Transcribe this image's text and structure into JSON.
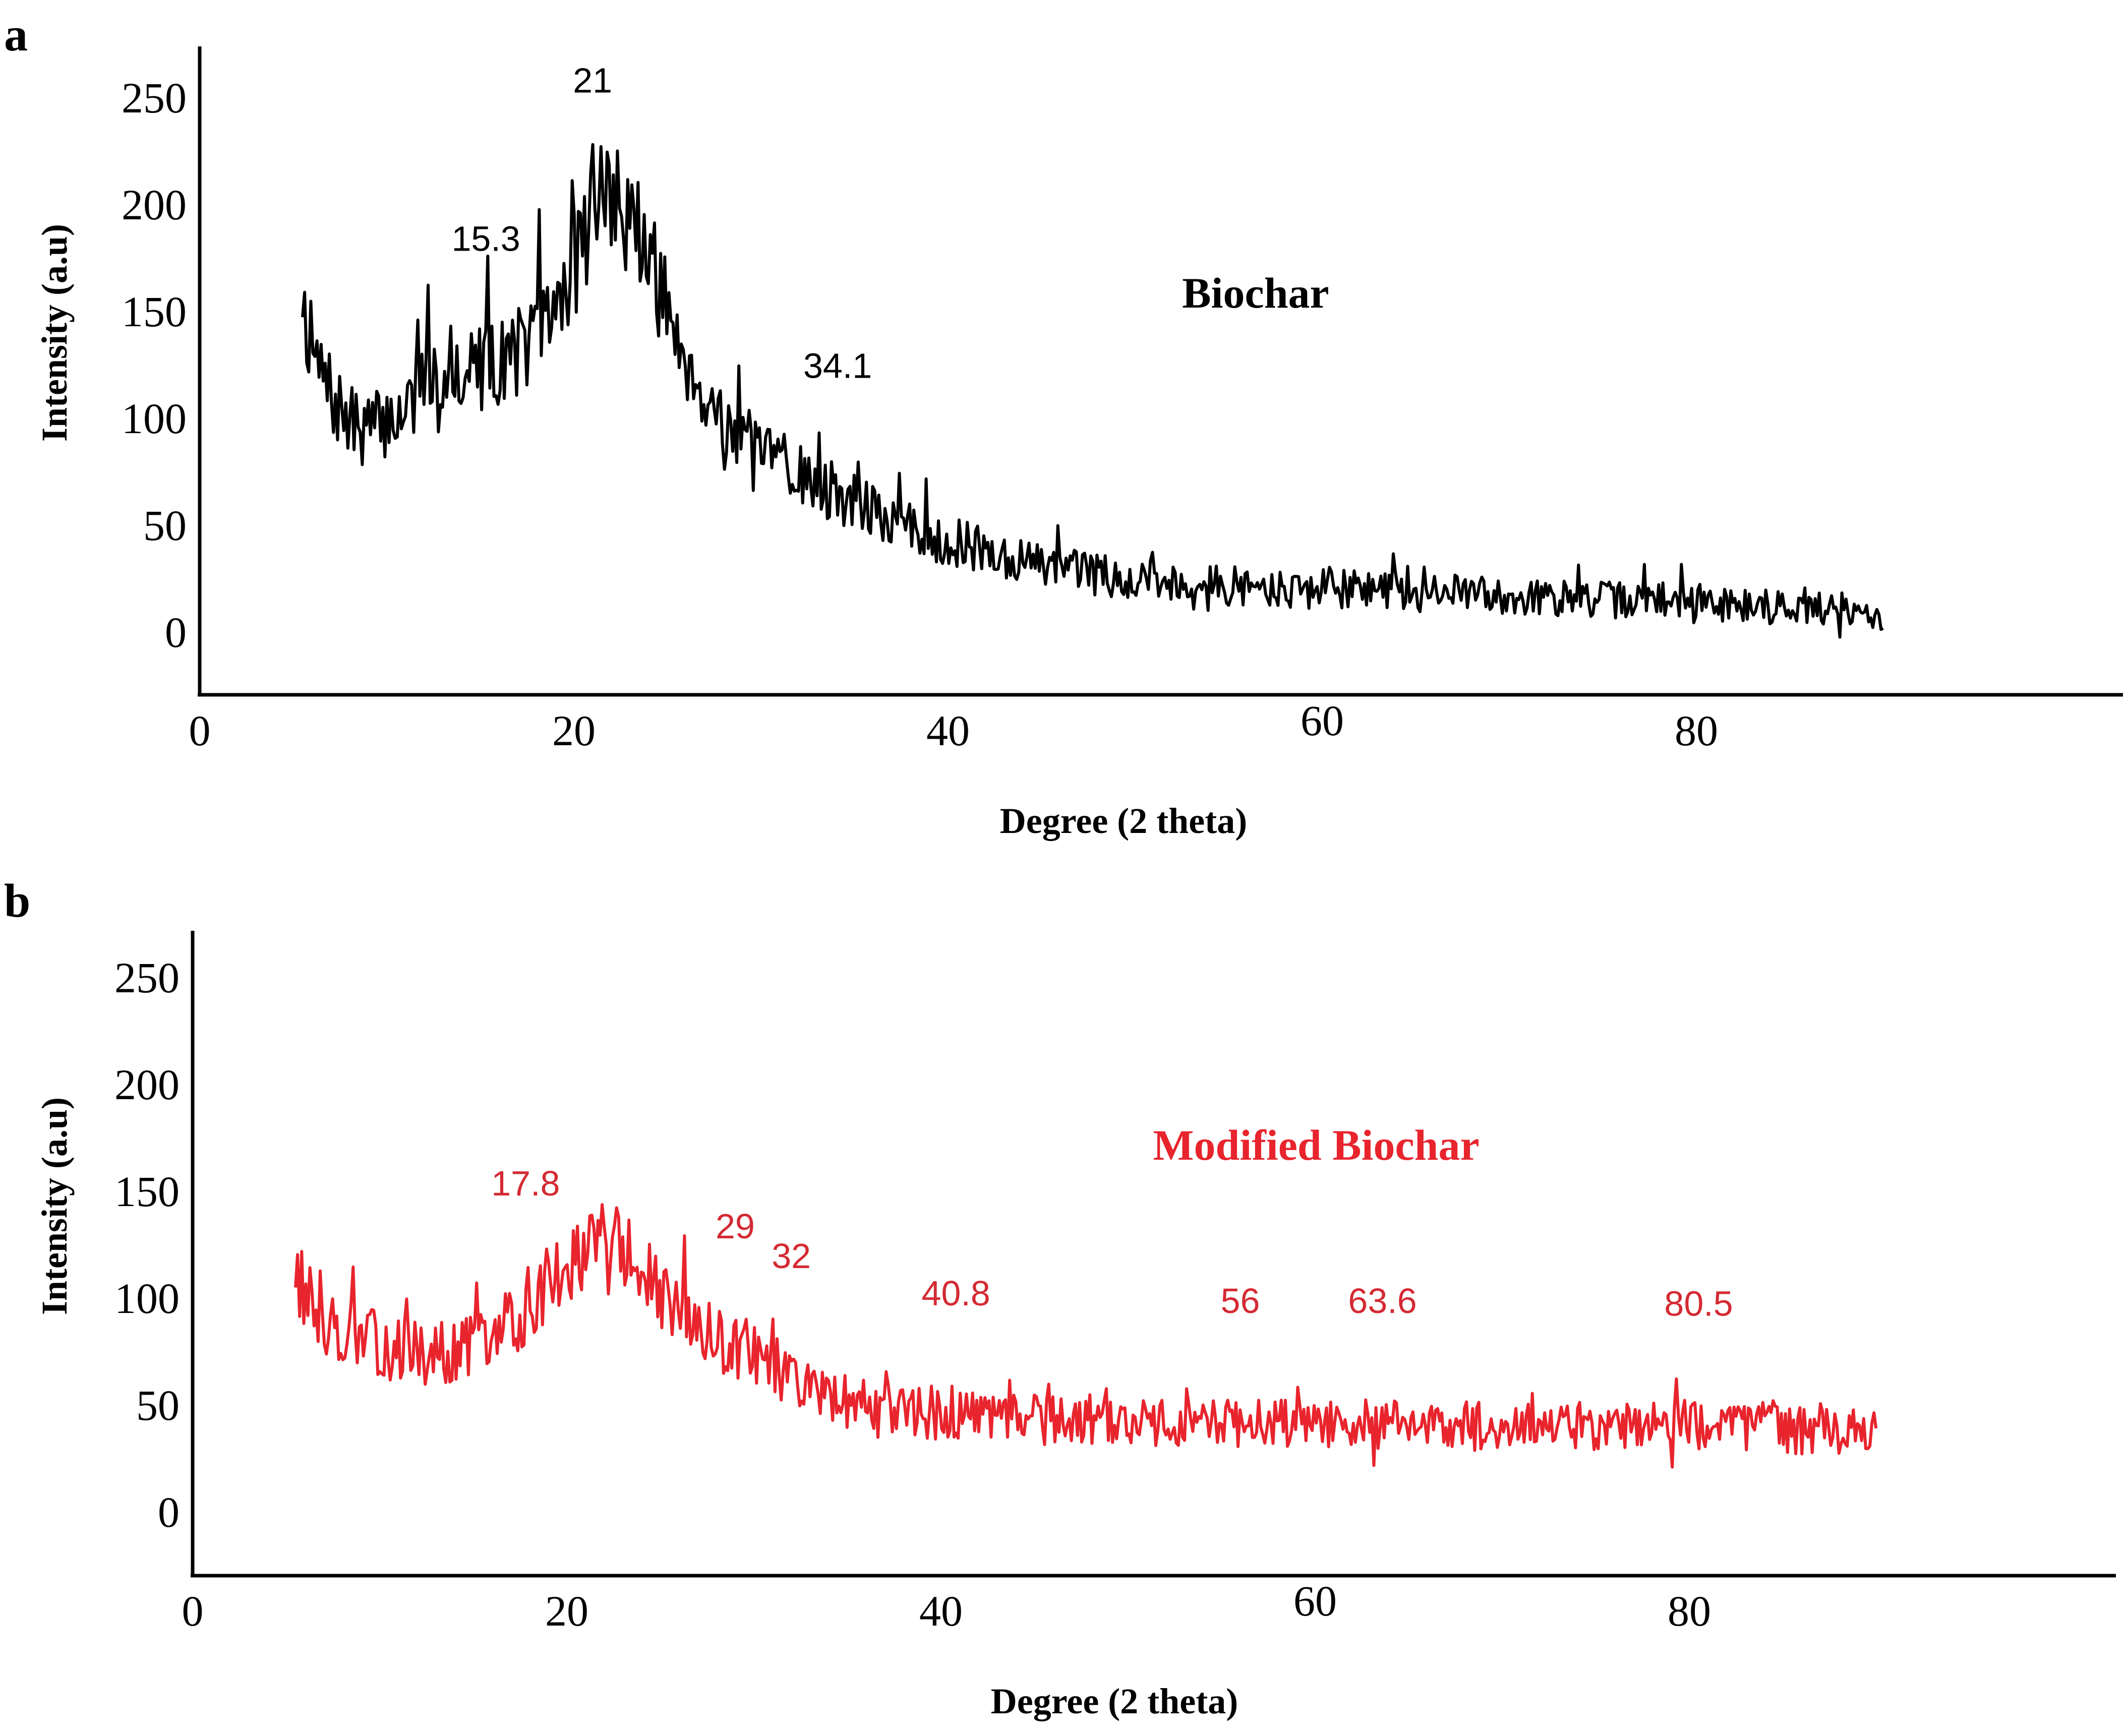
{
  "chart_data": [
    {
      "panel": "a",
      "type": "line",
      "xlabel": "Degree (2 theta)",
      "ylabel": "Intensity (a.u)",
      "xlim": [
        0,
        92
      ],
      "ylim": [
        -28,
        275
      ],
      "x_ticks": [
        0,
        20,
        40,
        60,
        80
      ],
      "y_ticks": [
        0,
        50,
        100,
        150,
        200,
        250
      ],
      "color": "#000000",
      "series": [
        {
          "name": "Biochar",
          "x": [
            5.5,
            6,
            7,
            8,
            9,
            10,
            11,
            12,
            13,
            14,
            15,
            16,
            17,
            18,
            19,
            20,
            20.5,
            21,
            21.5,
            22,
            23,
            24,
            25,
            26,
            27,
            28,
            29,
            30,
            31,
            32,
            33,
            34,
            35,
            36,
            37,
            38,
            40,
            42,
            44,
            46,
            48,
            50,
            52,
            54,
            56,
            58,
            60,
            62,
            64,
            66,
            68,
            70,
            72,
            74,
            76,
            78,
            80,
            82,
            84,
            86,
            88,
            90
          ],
          "y": [
            160,
            130,
            110,
            97,
            95,
            98,
            105,
            115,
            122,
            124,
            123,
            126,
            132,
            138,
            150,
            170,
            185,
            198,
            206,
            202,
            195,
            175,
            150,
            130,
            110,
            100,
            90,
            82,
            78,
            74,
            70,
            65,
            60,
            55,
            52,
            48,
            42,
            38,
            33,
            30,
            27,
            25,
            23,
            22,
            21,
            20,
            20,
            20,
            19,
            18,
            18,
            17,
            16,
            15,
            15,
            14,
            14,
            13,
            12,
            11,
            10,
            8
          ]
        }
      ],
      "annotations": [
        {
          "x": 15.3,
          "label": "15.3"
        },
        {
          "x": 21,
          "label": "21"
        },
        {
          "x": 34.1,
          "label": "34.1"
        }
      ]
    },
    {
      "panel": "b",
      "type": "line",
      "xlabel": "Degree (2 theta)",
      "ylabel": "Intensity (a.u)",
      "xlim": [
        0,
        92
      ],
      "ylim": [
        -28,
        275
      ],
      "x_ticks": [
        0,
        20,
        40,
        60,
        80
      ],
      "y_ticks": [
        0,
        50,
        100,
        150,
        200,
        250
      ],
      "color": "#e8242d",
      "series": [
        {
          "name": "Modified Biochar",
          "x": [
            5.5,
            6,
            7,
            8,
            9,
            10,
            11,
            12,
            13,
            14,
            15,
            16,
            17,
            18,
            19,
            20,
            21,
            22,
            23,
            24,
            25,
            26,
            27,
            28,
            29,
            30,
            31,
            32,
            33,
            34,
            35,
            36,
            38,
            40,
            42,
            44,
            46,
            48,
            50,
            52,
            54,
            56,
            58,
            60,
            62,
            64,
            66,
            68,
            70,
            72,
            74,
            76,
            78,
            80,
            82,
            84,
            86,
            88,
            90
          ],
          "y": [
            115,
            100,
            90,
            85,
            80,
            78,
            76,
            75,
            74,
            75,
            77,
            80,
            88,
            98,
            108,
            118,
            125,
            126,
            122,
            112,
            100,
            90,
            82,
            78,
            76,
            74,
            68,
            62,
            58,
            55,
            52,
            50,
            47,
            45,
            44,
            43,
            43,
            42,
            42,
            42,
            41,
            41,
            41,
            41,
            41,
            41,
            40,
            40,
            40,
            40,
            40,
            40,
            40,
            40,
            39,
            39,
            38,
            38,
            37
          ]
        }
      ],
      "annotations": [
        {
          "x": 17.8,
          "label": "17.8"
        },
        {
          "x": 29,
          "label": "29"
        },
        {
          "x": 32,
          "label": "32"
        },
        {
          "x": 40.8,
          "label": "40.8"
        },
        {
          "x": 56,
          "label": "56"
        },
        {
          "x": 63.6,
          "label": "63.6"
        },
        {
          "x": 80.5,
          "label": "80.5"
        }
      ]
    }
  ]
}
